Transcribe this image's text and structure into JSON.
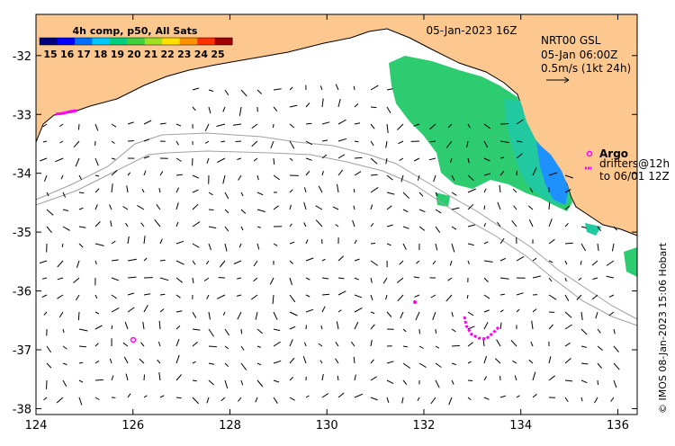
{
  "colorbar": {
    "title": "4h comp, p50, All Sats",
    "tick_labels": [
      "15",
      "16",
      "17",
      "18",
      "19",
      "20",
      "21",
      "22",
      "23",
      "24",
      "25"
    ],
    "colors": [
      "#00007f",
      "#0000ff",
      "#0070ff",
      "#00c8ff",
      "#00d080",
      "#40d040",
      "#a0e020",
      "#ffe000",
      "#ff9000",
      "#ff3000",
      "#a00000"
    ]
  },
  "datetime_label": "05-Jan-2023 16Z",
  "product": {
    "name": "NRT00 GSL",
    "time": "05-Jan 06:00Z",
    "scale": "0.5m/s (1kt 24h)"
  },
  "legend": {
    "argo_label": "Argo",
    "drifters_line1": "drifters@12h",
    "drifters_line2": "to 06/01 12Z"
  },
  "credit": "© IMOS 08-Jan-2023 15:06 Hobart",
  "axes": {
    "lon_ticks": [
      "124",
      "126",
      "128",
      "130",
      "132",
      "134",
      "136"
    ],
    "lat_ticks": [
      "-32",
      "-33",
      "-34",
      "-35",
      "-36",
      "-37",
      "-38"
    ],
    "lon_range": [
      124,
      136.4
    ],
    "lat_range": [
      -38.1,
      -31.3
    ]
  },
  "colors": {
    "land": "#fcc890",
    "sst_green": "#2ecc71",
    "sst_teal": "#22c8a0",
    "sst_blue": "#1e90ff",
    "markers": "#ff00ff",
    "contour": "#a0a0a0"
  }
}
